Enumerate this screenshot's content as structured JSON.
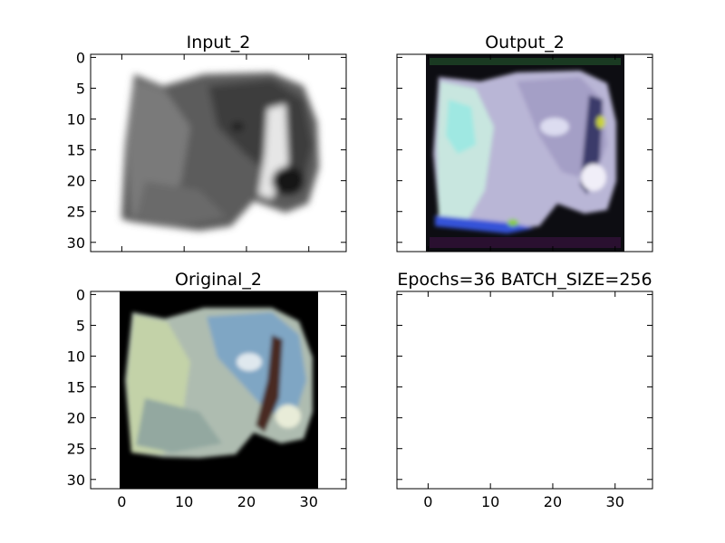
{
  "chart_data": [
    {
      "type": "heatmap",
      "title": "Input_2",
      "content": "grayscale dog head image",
      "xlim": [
        -5,
        36
      ],
      "ylim": [
        31.5,
        -0.5
      ],
      "xticks": [
        0,
        10,
        20,
        30
      ],
      "yticks": [
        0,
        5,
        10,
        15,
        20,
        25,
        30
      ],
      "show_xtick_labels": false,
      "show_ytick_labels": true
    },
    {
      "type": "heatmap",
      "title": "Output_2",
      "content": "reconstructed color image, pale lavender/cyan tones on dark border",
      "xlim": [
        -5,
        36
      ],
      "ylim": [
        31.5,
        -0.5
      ],
      "xticks": [
        0,
        10,
        20,
        30
      ],
      "yticks": [
        0,
        5,
        10,
        15,
        20,
        25,
        30
      ],
      "show_xtick_labels": false,
      "show_ytick_labels": false
    },
    {
      "type": "heatmap",
      "title": "Original_2",
      "content": "original color image, pale green/blue tones on black background",
      "xlim": [
        -5,
        36
      ],
      "ylim": [
        31.5,
        -0.5
      ],
      "xticks": [
        0,
        10,
        20,
        30
      ],
      "yticks": [
        0,
        5,
        10,
        15,
        20,
        25,
        30
      ],
      "show_xtick_labels": true,
      "show_ytick_labels": true
    },
    {
      "type": "heatmap",
      "title": "Epochs=36 BATCH_SIZE=256",
      "content": "empty axes",
      "xlim": [
        -5,
        36
      ],
      "ylim": [
        31.5,
        -0.5
      ],
      "xticks": [
        0,
        10,
        20,
        30
      ],
      "yticks": [
        0,
        5,
        10,
        15,
        20,
        25,
        30
      ],
      "show_xtick_labels": true,
      "show_ytick_labels": false
    }
  ]
}
